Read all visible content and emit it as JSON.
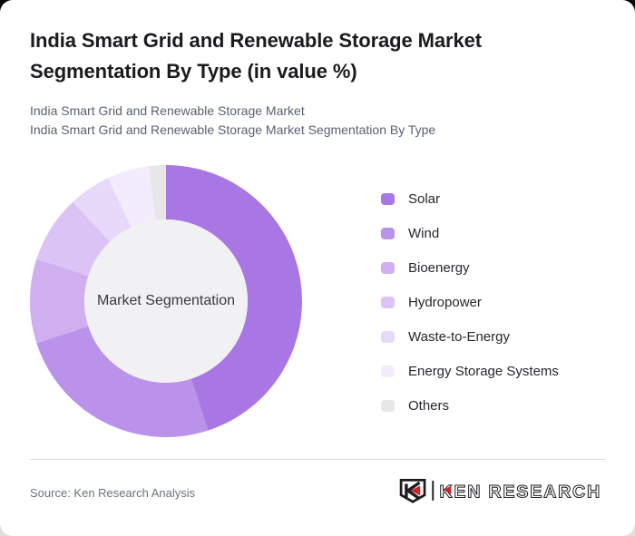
{
  "header": {
    "title": "India Smart Grid and Renewable Storage Market Segmentation By Type (in value %)",
    "subtitle_line1": "India Smart Grid and Renewable Storage Market",
    "subtitle_line2": "India Smart Grid and Renewable Storage Market Segmentation By Type"
  },
  "chart_data": {
    "type": "pie",
    "donut": true,
    "title": "India Smart Grid and Renewable Storage Market Segmentation By Type (in value %)",
    "units": "value %",
    "center_label": "Market Segmentation",
    "categories": [
      "Solar",
      "Wind",
      "Bioenergy",
      "Hydropower",
      "Waste-to-Energy",
      "Energy Storage Systems",
      "Others"
    ],
    "values": [
      45,
      25,
      10,
      8,
      5,
      5,
      2
    ],
    "colors": [
      "#a877e3",
      "#bb92ea",
      "#d0aef0",
      "#dcc3f5",
      "#e8d9fa",
      "#f3ecfd",
      "#e7e6e9"
    ],
    "center_circle_color": "#f1f0f2",
    "start_angle_deg": 0,
    "direction": "clockwise",
    "legend_position": "right"
  },
  "footer": {
    "source": "Source: Ken Research Analysis",
    "logo_text": "KEN RESEARCH",
    "logo_ink": "#1d1d1f",
    "logo_accent": "#c9252b"
  }
}
